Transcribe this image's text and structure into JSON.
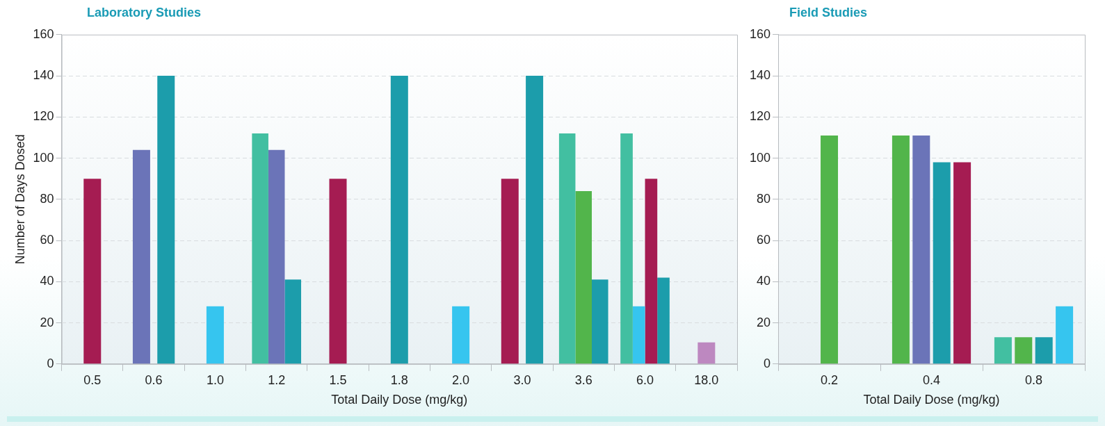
{
  "chart_data": [
    {
      "type": "bar",
      "title": "Laboratory Studies",
      "xlabel": "Total Daily Dose (mg/kg)",
      "ylabel": "Number of Days Dosed",
      "categories": [
        "0.5",
        "0.6",
        "1.0",
        "1.2",
        "1.5",
        "1.8",
        "2.0",
        "3.0",
        "3.6",
        "6.0",
        "18.0"
      ],
      "series": [
        {
          "color": "#42bfa1",
          "values": [
            null,
            null,
            null,
            112,
            null,
            null,
            null,
            null,
            112,
            112,
            null
          ]
        },
        {
          "color": "#52b54b",
          "values": [
            null,
            null,
            null,
            null,
            null,
            null,
            null,
            null,
            84,
            null,
            null
          ]
        },
        {
          "color": "#36c5ef",
          "values": [
            null,
            null,
            28,
            null,
            null,
            null,
            28,
            null,
            null,
            28,
            null
          ]
        },
        {
          "color": "#6b74b8",
          "values": [
            null,
            104,
            null,
            104,
            null,
            null,
            null,
            null,
            null,
            null,
            null
          ]
        },
        {
          "color": "#a51c52",
          "values": [
            90,
            null,
            null,
            null,
            90,
            null,
            null,
            90,
            null,
            90,
            null
          ]
        },
        {
          "color": "#1c9dab",
          "values": [
            null,
            140,
            null,
            41,
            null,
            140,
            null,
            140,
            41,
            42,
            null
          ]
        },
        {
          "color": "#bd88c0",
          "values": [
            null,
            null,
            null,
            null,
            null,
            null,
            null,
            null,
            null,
            null,
            10.5
          ]
        }
      ],
      "ylim": [
        0,
        160
      ],
      "yticks": [
        0,
        20,
        40,
        60,
        80,
        100,
        120,
        140,
        160
      ],
      "grid": "y",
      "legend": false
    },
    {
      "type": "bar",
      "title": "Field Studies",
      "xlabel": "Total Daily Dose (mg/kg)",
      "categories": [
        "0.2",
        "0.4",
        "0.8"
      ],
      "series": [
        {
          "color": "#42bfa1",
          "values": [
            null,
            null,
            13
          ]
        },
        {
          "color": "#52b54b",
          "values": [
            111,
            111,
            13
          ]
        },
        {
          "color": "#6b74b8",
          "values": [
            null,
            111,
            null
          ]
        },
        {
          "color": "#1c9dab",
          "values": [
            null,
            98,
            13
          ]
        },
        {
          "color": "#a51c52",
          "values": [
            null,
            98,
            null
          ]
        },
        {
          "color": "#36c5ef",
          "values": [
            null,
            null,
            28
          ]
        }
      ],
      "ylim": [
        0,
        160
      ],
      "yticks": [
        0,
        20,
        40,
        60,
        80,
        100,
        120,
        140,
        160
      ],
      "grid": "y",
      "legend": false
    }
  ]
}
